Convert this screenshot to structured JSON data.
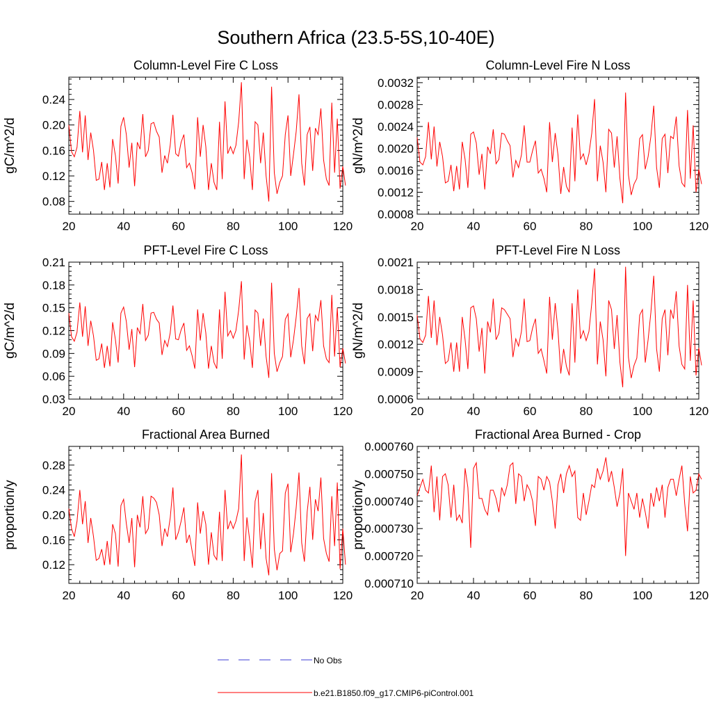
{
  "main_title": "Southern Africa (23.5-5S,10-40E)",
  "colors": {
    "model": "#ff0000",
    "obs": "#3b3bd6",
    "axis": "#000000"
  },
  "legend": {
    "entries": [
      {
        "label": "No Obs",
        "style": "dashed",
        "color": "#3b3bd6"
      },
      {
        "label": "b.e21.B1850.f09_g17.CMIP6-piControl.001",
        "style": "solid",
        "color": "#ff0000"
      }
    ]
  },
  "chart_data": [
    {
      "type": "line",
      "title": "Column-Level Fire C Loss",
      "ylabel": "gC/m^2/d",
      "xlim": [
        20,
        120
      ],
      "ylim": [
        0.06,
        0.275
      ],
      "xticks": [
        20,
        40,
        60,
        80,
        100,
        120
      ],
      "yticks": [
        0.08,
        0.12,
        0.16,
        0.2,
        0.24
      ],
      "ytick_labels": [
        "0.08",
        "0.12",
        "0.16",
        "0.20",
        "0.24"
      ],
      "series": [
        {
          "name": "b.e21.B1850.f09_g17.CMIP6-piControl.001",
          "x0": 20,
          "dx": 1,
          "values": [
            0.2,
            0.158,
            0.15,
            0.165,
            0.222,
            0.157,
            0.215,
            0.145,
            0.188,
            0.16,
            0.113,
            0.115,
            0.142,
            0.098,
            0.14,
            0.102,
            0.178,
            0.152,
            0.108,
            0.198,
            0.212,
            0.185,
            0.133,
            0.172,
            0.104,
            0.173,
            0.162,
            0.217,
            0.15,
            0.16,
            0.202,
            0.204,
            0.19,
            0.181,
            0.125,
            0.152,
            0.14,
            0.168,
            0.216,
            0.155,
            0.151,
            0.173,
            0.185,
            0.133,
            0.14,
            0.125,
            0.099,
            0.212,
            0.15,
            0.2,
            0.166,
            0.098,
            0.14,
            0.11,
            0.098,
            0.205,
            0.115,
            0.237,
            0.155,
            0.166,
            0.155,
            0.168,
            0.205,
            0.267,
            0.115,
            0.177,
            0.15,
            0.098,
            0.205,
            0.2,
            0.14,
            0.188,
            0.12,
            0.08,
            0.26,
            0.125,
            0.092,
            0.11,
            0.12,
            0.185,
            0.215,
            0.12,
            0.154,
            0.19,
            0.248,
            0.14,
            0.105,
            0.185,
            0.197,
            0.128,
            0.195,
            0.185,
            0.226,
            0.145,
            0.115,
            0.105,
            0.235,
            0.125,
            0.21,
            0.1,
            0.135,
            0.105
          ]
        }
      ]
    },
    {
      "type": "line",
      "title": "Column-Level Fire N Loss",
      "ylabel": "gN/m^2/d",
      "xlim": [
        20,
        120
      ],
      "ylim": [
        0.0008,
        0.0033
      ],
      "xticks": [
        20,
        40,
        60,
        80,
        100,
        120
      ],
      "yticks": [
        0.0008,
        0.0012,
        0.0016,
        0.002,
        0.0024,
        0.0028,
        0.0032
      ],
      "ytick_labels": [
        "0.0008",
        "0.0012",
        "0.0016",
        "0.0020",
        "0.0024",
        "0.0028",
        "0.0032"
      ],
      "series": [
        {
          "name": "b.e21.B1850.f09_g17.CMIP6-piControl.001",
          "x0": 20,
          "dx": 1,
          "values": [
            0.0022,
            0.00175,
            0.0017,
            0.00185,
            0.00248,
            0.0018,
            0.0024,
            0.00167,
            0.00212,
            0.00185,
            0.00137,
            0.0014,
            0.0017,
            0.00122,
            0.00168,
            0.00125,
            0.00212,
            0.0018,
            0.00128,
            0.00226,
            0.0023,
            0.0021,
            0.00152,
            0.0019,
            0.00125,
            0.00203,
            0.0019,
            0.00235,
            0.00172,
            0.0018,
            0.00228,
            0.00226,
            0.00214,
            0.00205,
            0.00147,
            0.00178,
            0.00165,
            0.00188,
            0.00242,
            0.00175,
            0.00175,
            0.00196,
            0.00214,
            0.00155,
            0.00162,
            0.00145,
            0.0012,
            0.00248,
            0.00175,
            0.00228,
            0.00188,
            0.00117,
            0.00166,
            0.00131,
            0.0012,
            0.00238,
            0.0014,
            0.00262,
            0.0018,
            0.0019,
            0.0017,
            0.0019,
            0.00228,
            0.0029,
            0.0014,
            0.00205,
            0.00175,
            0.0012,
            0.00235,
            0.00228,
            0.00165,
            0.00222,
            0.00145,
            0.001,
            0.00302,
            0.00152,
            0.00115,
            0.00135,
            0.00145,
            0.00218,
            0.00225,
            0.00162,
            0.00185,
            0.00222,
            0.00278,
            0.00165,
            0.00128,
            0.00218,
            0.00226,
            0.00155,
            0.00222,
            0.00218,
            0.00258,
            0.00168,
            0.00137,
            0.0013,
            0.0027,
            0.00145,
            0.00242,
            0.0012,
            0.00162,
            0.00135
          ]
        }
      ]
    },
    {
      "type": "line",
      "title": "PFT-Level Fire C Loss",
      "ylabel": "gC/m^2/d",
      "xlim": [
        20,
        120
      ],
      "ylim": [
        0.03,
        0.21
      ],
      "xticks": [
        20,
        40,
        60,
        80,
        100,
        120
      ],
      "yticks": [
        0.03,
        0.06,
        0.09,
        0.12,
        0.15,
        0.18,
        0.21
      ],
      "ytick_labels": [
        "0.03",
        "0.06",
        "0.09",
        "0.12",
        "0.15",
        "0.18",
        "0.21"
      ],
      "series": [
        {
          "name": "b.e21.B1850.f09_g17.CMIP6-piControl.001",
          "x0": 20,
          "dx": 1,
          "values": [
            0.143,
            0.112,
            0.106,
            0.118,
            0.157,
            0.112,
            0.152,
            0.1,
            0.133,
            0.113,
            0.081,
            0.083,
            0.103,
            0.071,
            0.1,
            0.073,
            0.131,
            0.108,
            0.078,
            0.143,
            0.151,
            0.132,
            0.095,
            0.122,
            0.072,
            0.124,
            0.116,
            0.155,
            0.107,
            0.114,
            0.143,
            0.144,
            0.135,
            0.13,
            0.088,
            0.107,
            0.099,
            0.117,
            0.153,
            0.109,
            0.108,
            0.121,
            0.13,
            0.094,
            0.1,
            0.087,
            0.07,
            0.148,
            0.107,
            0.143,
            0.117,
            0.07,
            0.1,
            0.078,
            0.07,
            0.148,
            0.083,
            0.171,
            0.113,
            0.12,
            0.11,
            0.12,
            0.147,
            0.185,
            0.082,
            0.127,
            0.107,
            0.071,
            0.147,
            0.143,
            0.1,
            0.136,
            0.086,
            0.058,
            0.183,
            0.09,
            0.066,
            0.078,
            0.086,
            0.135,
            0.142,
            0.085,
            0.108,
            0.138,
            0.176,
            0.1,
            0.076,
            0.136,
            0.142,
            0.093,
            0.14,
            0.133,
            0.16,
            0.1,
            0.083,
            0.078,
            0.167,
            0.086,
            0.15,
            0.072,
            0.097,
            0.077
          ]
        }
      ]
    },
    {
      "type": "line",
      "title": "PFT-Level Fire N Loss",
      "ylabel": "gN/m^2/d",
      "xlim": [
        20,
        120
      ],
      "ylim": [
        0.0006,
        0.0021
      ],
      "xticks": [
        20,
        40,
        60,
        80,
        100,
        120
      ],
      "yticks": [
        0.0006,
        0.0009,
        0.0012,
        0.0015,
        0.0018,
        0.0021
      ],
      "ytick_labels": [
        "0.0006",
        "0.0009",
        "0.0012",
        "0.0015",
        "0.0018",
        "0.0021"
      ],
      "series": [
        {
          "name": "b.e21.B1850.f09_g17.CMIP6-piControl.001",
          "x0": 20,
          "dx": 1,
          "values": [
            0.00152,
            0.00126,
            0.00122,
            0.0013,
            0.00173,
            0.00127,
            0.00168,
            0.00119,
            0.0015,
            0.0013,
            0.00099,
            0.00102,
            0.00122,
            0.0009,
            0.00122,
            0.0009,
            0.0015,
            0.00125,
            0.00093,
            0.0016,
            0.00162,
            0.00148,
            0.00112,
            0.00138,
            0.00088,
            0.00145,
            0.00133,
            0.0017,
            0.00125,
            0.00132,
            0.0016,
            0.00158,
            0.00153,
            0.00148,
            0.00106,
            0.00126,
            0.00118,
            0.00134,
            0.0017,
            0.00123,
            0.00124,
            0.00138,
            0.00148,
            0.0011,
            0.00115,
            0.00102,
            0.00088,
            0.00172,
            0.00125,
            0.00165,
            0.00135,
            0.00088,
            0.00115,
            0.00096,
            0.00086,
            0.00165,
            0.001,
            0.0018,
            0.00126,
            0.00135,
            0.00124,
            0.00134,
            0.00165,
            0.00203,
            0.00098,
            0.00145,
            0.00125,
            0.00085,
            0.00168,
            0.00158,
            0.00115,
            0.00152,
            0.001,
            0.00073,
            0.00205,
            0.00106,
            0.00083,
            0.00097,
            0.00105,
            0.00152,
            0.00158,
            0.001,
            0.00125,
            0.00155,
            0.00195,
            0.00115,
            0.0009,
            0.00148,
            0.00158,
            0.00108,
            0.00158,
            0.00148,
            0.00178,
            0.00118,
            0.00098,
            0.00093,
            0.00185,
            0.00102,
            0.00168,
            0.00086,
            0.00116,
            0.00097
          ]
        }
      ]
    },
    {
      "type": "line",
      "title": "Fractional Area Burned",
      "ylabel": "proportion/y",
      "xlim": [
        20,
        120
      ],
      "ylim": [
        0.09,
        0.31
      ],
      "xticks": [
        20,
        40,
        60,
        80,
        100,
        120
      ],
      "yticks": [
        0.12,
        0.16,
        0.2,
        0.24,
        0.28
      ],
      "ytick_labels": [
        "0.12",
        "0.16",
        "0.20",
        "0.24",
        "0.28"
      ],
      "series": [
        {
          "name": "b.e21.B1850.f09_g17.CMIP6-piControl.001",
          "x0": 20,
          "dx": 1,
          "values": [
            0.21,
            0.178,
            0.165,
            0.19,
            0.24,
            0.185,
            0.222,
            0.155,
            0.195,
            0.165,
            0.127,
            0.13,
            0.145,
            0.119,
            0.158,
            0.12,
            0.185,
            0.17,
            0.117,
            0.215,
            0.225,
            0.186,
            0.155,
            0.195,
            0.116,
            0.2,
            0.18,
            0.23,
            0.17,
            0.178,
            0.23,
            0.227,
            0.22,
            0.2,
            0.15,
            0.178,
            0.165,
            0.195,
            0.244,
            0.16,
            0.172,
            0.19,
            0.212,
            0.155,
            0.168,
            0.142,
            0.118,
            0.22,
            0.17,
            0.206,
            0.185,
            0.12,
            0.172,
            0.135,
            0.128,
            0.205,
            0.126,
            0.24,
            0.177,
            0.19,
            0.178,
            0.19,
            0.21,
            0.297,
            0.126,
            0.196,
            0.16,
            0.115,
            0.222,
            0.24,
            0.145,
            0.203,
            0.13,
            0.103,
            0.267,
            0.145,
            0.111,
            0.138,
            0.142,
            0.235,
            0.25,
            0.14,
            0.17,
            0.212,
            0.268,
            0.155,
            0.125,
            0.205,
            0.245,
            0.16,
            0.225,
            0.206,
            0.26,
            0.162,
            0.138,
            0.125,
            0.23,
            0.15,
            0.252,
            0.113,
            0.178,
            0.12
          ]
        }
      ]
    },
    {
      "type": "line",
      "title": "Fractional Area Burned - Crop",
      "ylabel": "proportion/y",
      "xlim": [
        20,
        120
      ],
      "ylim": [
        0.00071,
        0.00076
      ],
      "xticks": [
        20,
        40,
        60,
        80,
        100,
        120
      ],
      "yticks": [
        0.00071,
        0.00072,
        0.00073,
        0.00074,
        0.00075,
        0.00076
      ],
      "ytick_labels": [
        "0.000710",
        "0.000720",
        "0.000730",
        "0.000740",
        "0.000750",
        "0.000760"
      ],
      "series": [
        {
          "name": "b.e21.B1850.f09_g17.CMIP6-piControl.001",
          "x0": 20,
          "dx": 1,
          "values": [
            0.000742,
            0.000745,
            0.000748,
            0.000744,
            0.000743,
            0.000753,
            0.000736,
            0.000749,
            0.000733,
            0.000749,
            0.00075,
            0.000746,
            0.000734,
            0.000746,
            0.000733,
            0.000735,
            0.000732,
            0.000752,
            0.000745,
            0.000723,
            0.000752,
            0.000754,
            0.000741,
            0.000741,
            0.000737,
            0.000735,
            0.000744,
            0.000744,
            0.000741,
            0.000736,
            0.000745,
            0.000742,
            0.000746,
            0.000753,
            0.000754,
            0.000739,
            0.00075,
            0.000749,
            0.00074,
            0.000746,
            0.000744,
            0.00074,
            0.000731,
            0.000749,
            0.000748,
            0.000744,
            0.000749,
            0.000747,
            0.00074,
            0.00073,
            0.000746,
            0.00075,
            0.000743,
            0.00075,
            0.000753,
            0.000749,
            0.000751,
            0.000734,
            0.000733,
            0.000743,
            0.000735,
            0.00074,
            0.000746,
            0.000745,
            0.000752,
            0.000748,
            0.000751,
            0.000756,
            0.000747,
            0.000751,
            0.000745,
            0.000738,
            0.000743,
            0.000752,
            0.00072,
            0.000743,
            0.00074,
            0.000737,
            0.000743,
            0.000734,
            0.000741,
            0.000736,
            0.00073,
            0.000743,
            0.000738,
            0.000745,
            0.00074,
            0.000746,
            0.000734,
            0.000745,
            0.000748,
            0.000748,
            0.000742,
            0.000748,
            0.000753,
            0.000739,
            0.000729,
            0.000749,
            0.000743,
            0.000744,
            0.00075,
            0.000748
          ]
        }
      ]
    }
  ]
}
